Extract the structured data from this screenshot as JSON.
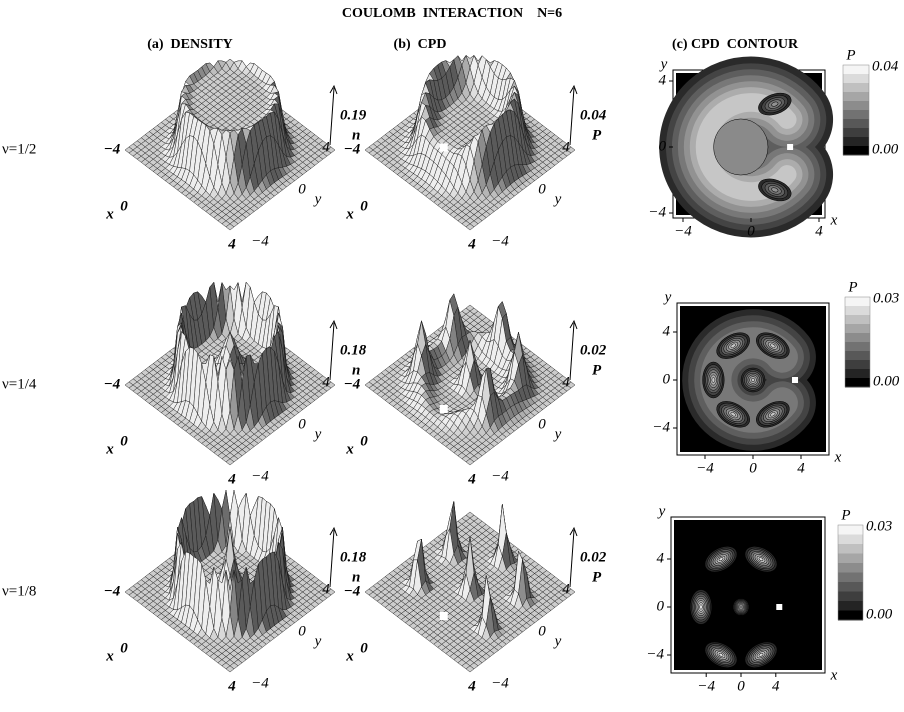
{
  "title": "COULOMB  INTERACTION    N=6",
  "panel_headers": [
    "(a)  DENSITY",
    "(b)  CPD",
    "(c) CPD  CONTOUR"
  ],
  "axis_labels": {
    "x": "x",
    "y": "y",
    "minus4": "−4",
    "zero": "0",
    "four": "4"
  },
  "rows": [
    {
      "label": "ν=1/2",
      "density": {
        "peak": "0.19",
        "symbol": "n"
      },
      "cpd": {
        "peak": "0.04",
        "symbol": "P"
      },
      "contour": {
        "symbol": "P",
        "max": "0.04",
        "min": "0.00"
      }
    },
    {
      "label": "ν=1/4",
      "density": {
        "peak": "0.18",
        "symbol": "n"
      },
      "cpd": {
        "peak": "0.02",
        "symbol": "P"
      },
      "contour": {
        "symbol": "P",
        "max": "0.03",
        "min": "0.00"
      }
    },
    {
      "label": "ν=1/8",
      "density": {
        "peak": "0.18",
        "symbol": "n"
      },
      "cpd": {
        "peak": "0.02",
        "symbol": "P"
      },
      "contour": {
        "symbol": "P",
        "max": "0.03",
        "min": "0.00"
      }
    }
  ]
}
